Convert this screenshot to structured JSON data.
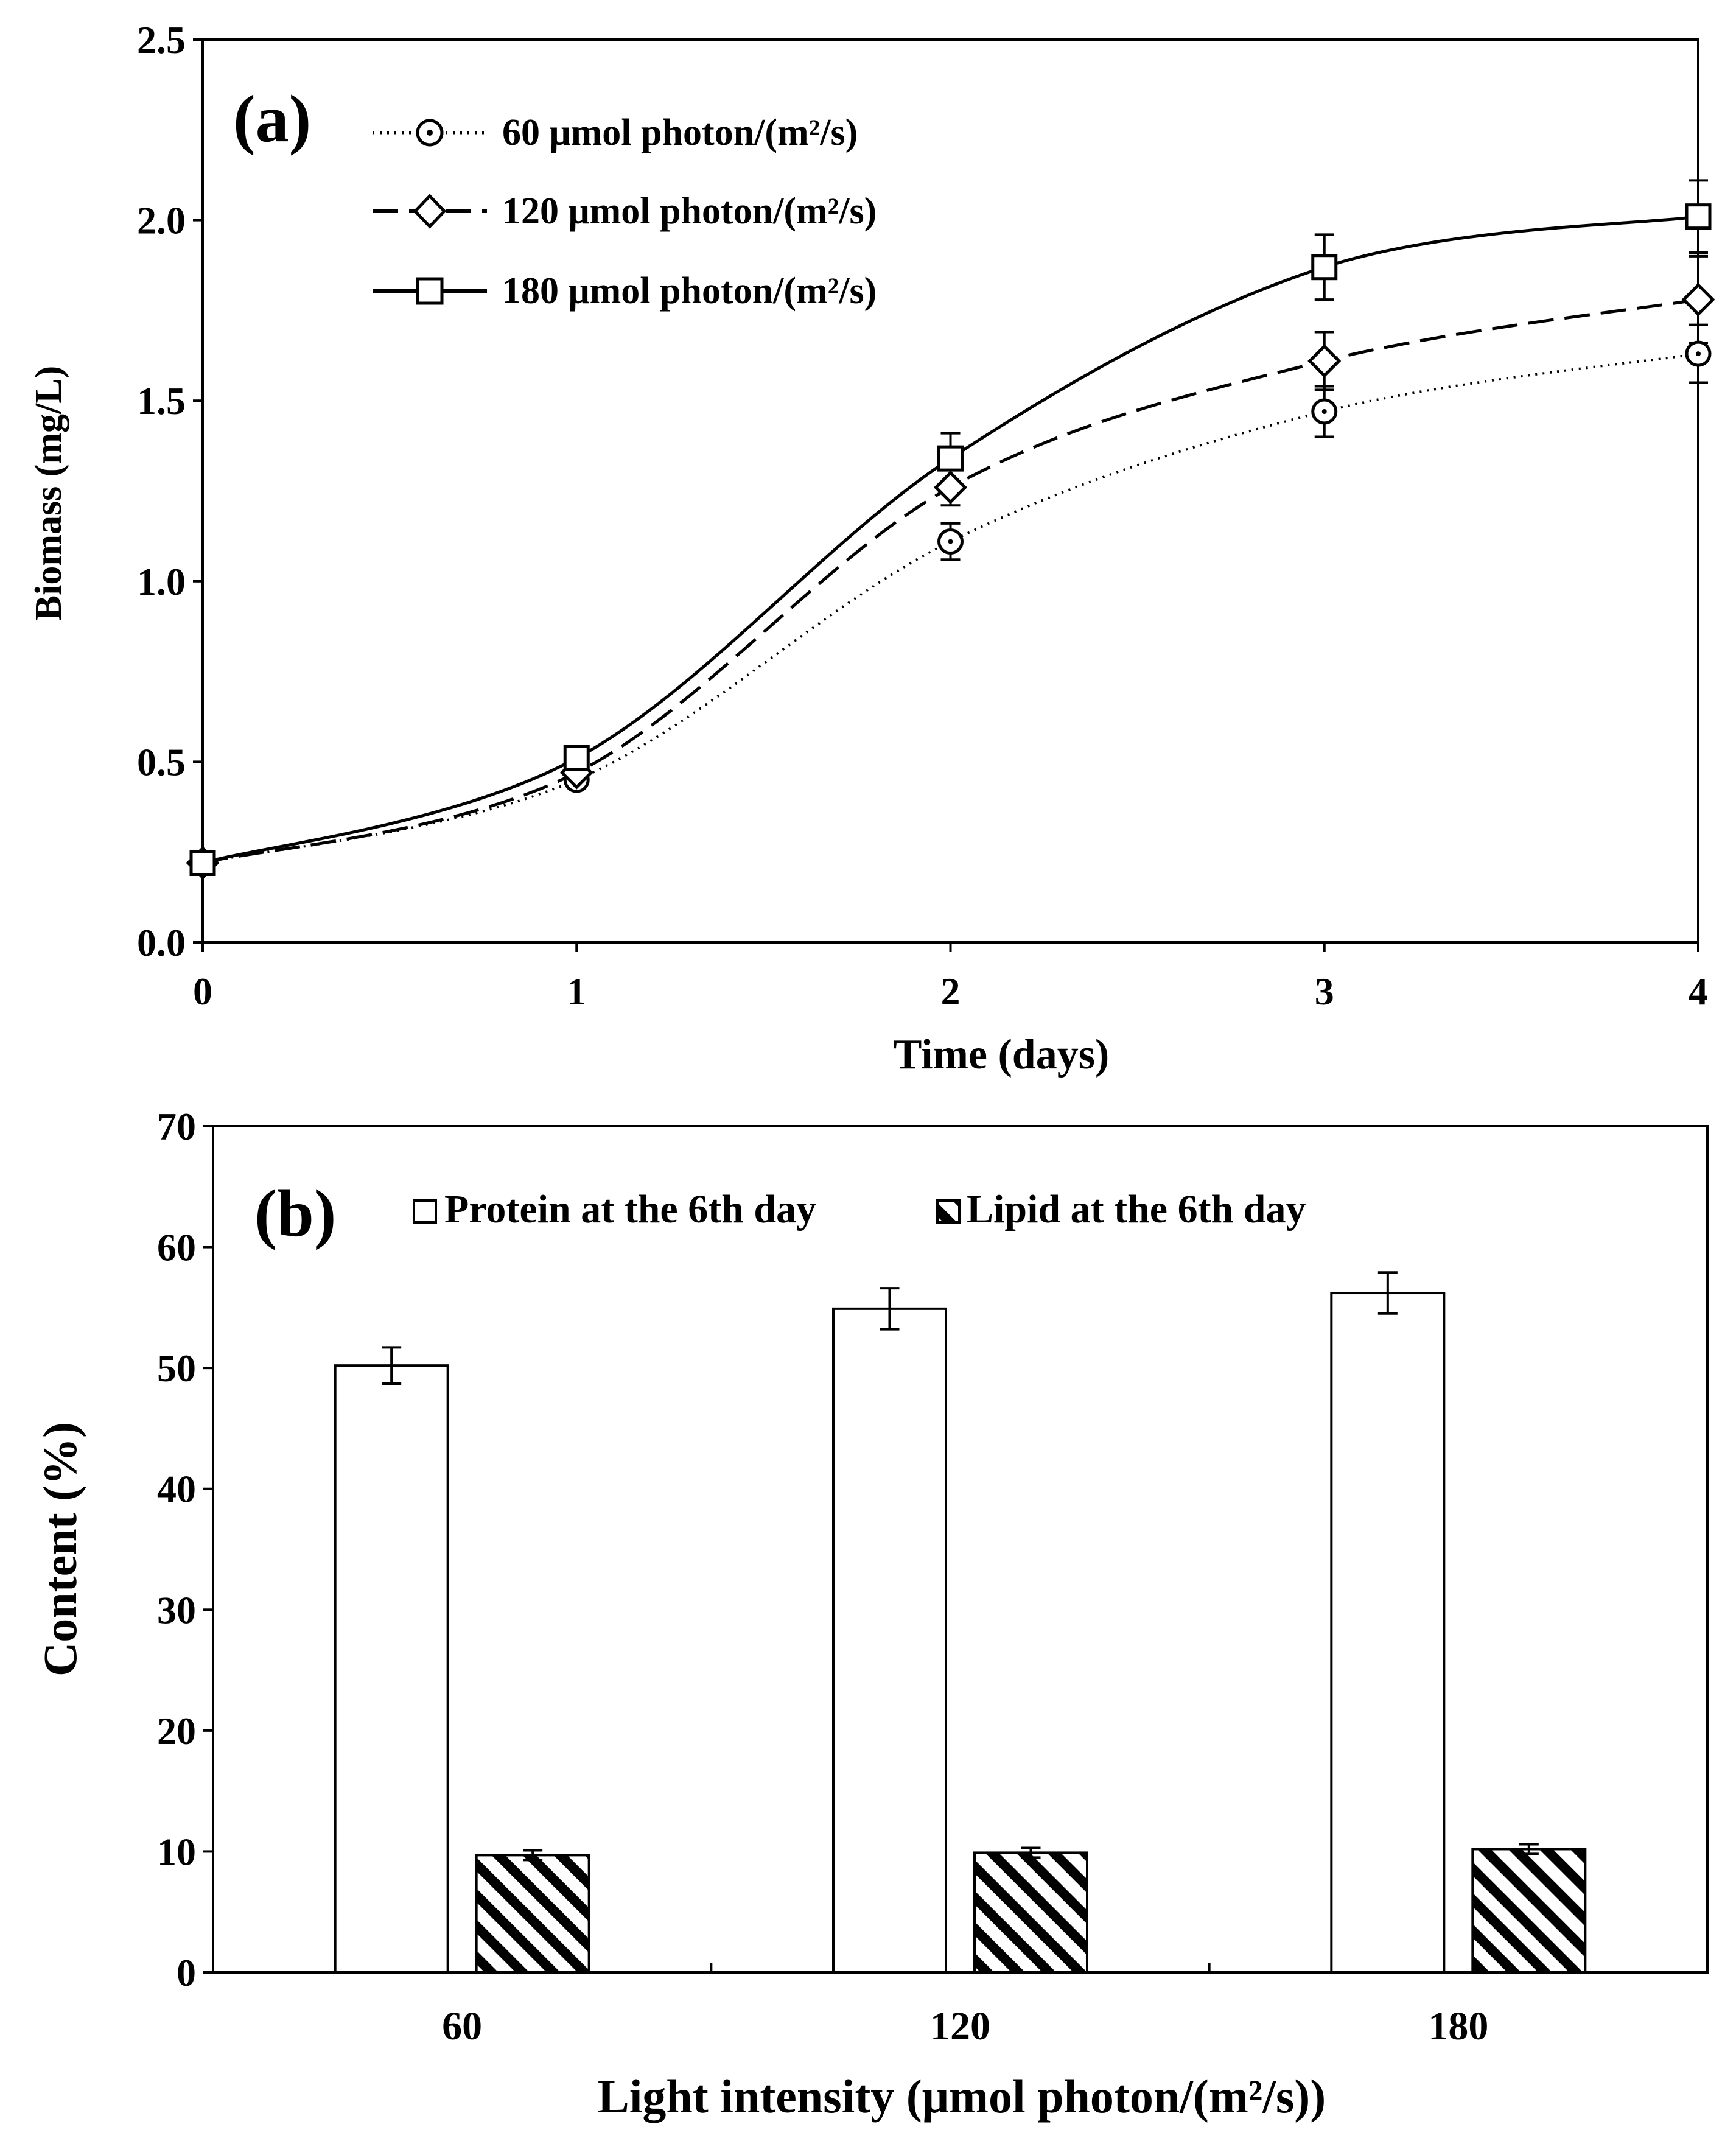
{
  "chart_data": [
    {
      "type": "line",
      "panel_label": "(a)",
      "xlabel": "Time (days)",
      "ylabel": "Biomass (mg/L)",
      "xlim": [
        0,
        4
      ],
      "ylim": [
        0,
        2.5
      ],
      "xticks": [
        "0",
        "1",
        "2",
        "3",
        "4"
      ],
      "yticks": [
        "0.0",
        "0.5",
        "1.0",
        "1.5",
        "2.0",
        "2.5"
      ],
      "x": [
        0,
        1,
        2,
        3,
        4
      ],
      "legend_position": "top-left",
      "series": [
        {
          "name": "60 μmol photon/(m²/s)",
          "line": "dotted",
          "marker": "circle",
          "values": [
            0.22,
            0.45,
            1.11,
            1.47,
            1.63
          ],
          "errors": [
            0.02,
            0.02,
            0.05,
            0.07,
            0.08
          ]
        },
        {
          "name": "120 μmol photon/(m²/s)",
          "line": "dashed",
          "marker": "diamond",
          "values": [
            0.22,
            0.47,
            1.26,
            1.61,
            1.78
          ],
          "errors": [
            0.02,
            0.02,
            0.05,
            0.08,
            0.12
          ]
        },
        {
          "name": "180 μmol photon/(m²/s)",
          "line": "solid",
          "marker": "square",
          "values": [
            0.22,
            0.51,
            1.34,
            1.87,
            2.01
          ],
          "errors": [
            0.02,
            0.02,
            0.07,
            0.09,
            0.1
          ]
        }
      ]
    },
    {
      "type": "bar",
      "panel_label": "(b)",
      "xlabel": "Light intensity (μmol photon/(m²/s))",
      "ylabel": "Content (%)",
      "ylim": [
        0,
        70
      ],
      "yticks": [
        "0",
        "10",
        "20",
        "30",
        "40",
        "50",
        "60",
        "70"
      ],
      "categories": [
        "60",
        "120",
        "180"
      ],
      "legend_position": "top",
      "series": [
        {
          "name": "Protein at the 6th day",
          "fill": "white",
          "values": [
            50.2,
            54.9,
            56.2
          ],
          "errors": [
            1.5,
            1.7,
            1.7
          ]
        },
        {
          "name": "Lipid at the 6th day",
          "fill": "hatched",
          "values": [
            9.7,
            9.9,
            10.2
          ],
          "errors": [
            0.4,
            0.4,
            0.4
          ]
        }
      ]
    }
  ]
}
